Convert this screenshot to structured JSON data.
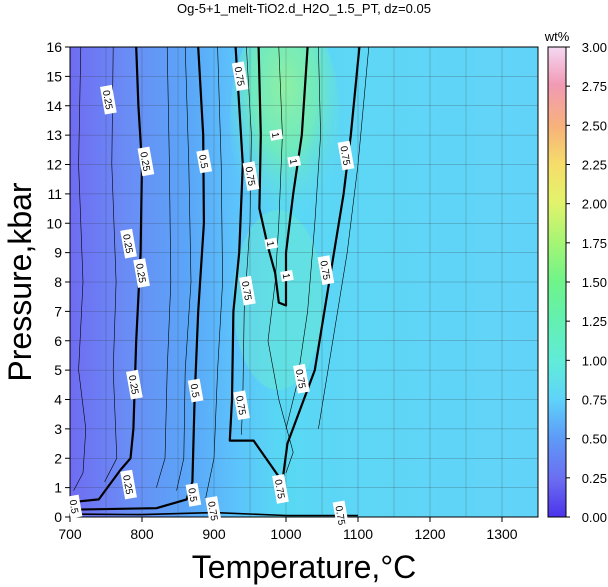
{
  "chart_data": {
    "type": "contour",
    "title": "Og-5+1_melt-TiO2.d_H2O_1.5_PT, dz=0.05",
    "xlabel": "Temperature,°C",
    "ylabel": "Pressure,kbar",
    "xlim": [
      700,
      1350
    ],
    "ylim": [
      0,
      16
    ],
    "x_ticks": [
      "700",
      "800",
      "900",
      "1000",
      "1100",
      "1200",
      "1300"
    ],
    "y_ticks": [
      "0",
      "1",
      "2",
      "3",
      "4",
      "5",
      "6",
      "7",
      "8",
      "9",
      "10",
      "11",
      "12",
      "13",
      "14",
      "15",
      "16"
    ],
    "grid": true,
    "colorbar": {
      "label": "wt%",
      "ticks": [
        "0.00",
        "0.25",
        "0.50",
        "0.75",
        "1.00",
        "1.25",
        "1.50",
        "1.75",
        "2.00",
        "2.25",
        "2.50",
        "2.75",
        "3.00"
      ],
      "range": [
        0,
        3
      ]
    },
    "contour_labels": [
      {
        "text": "0.25",
        "x": 752,
        "y": 14.2
      },
      {
        "text": "0.25",
        "x": 804,
        "y": 12.1
      },
      {
        "text": "0.25",
        "x": 798,
        "y": 8.3
      },
      {
        "text": "0.25",
        "x": 780,
        "y": 9.3
      },
      {
        "text": "0.25",
        "x": 788,
        "y": 4.5
      },
      {
        "text": "0.25",
        "x": 780,
        "y": 1.1
      },
      {
        "text": "0.5",
        "x": 705,
        "y": 0.35
      },
      {
        "text": "0.5",
        "x": 885,
        "y": 12.1
      },
      {
        "text": "0.5",
        "x": 873,
        "y": 4.3
      },
      {
        "text": "0.5",
        "x": 870,
        "y": 0.75
      },
      {
        "text": "0.75",
        "x": 935,
        "y": 15.0
      },
      {
        "text": "0.75",
        "x": 950,
        "y": 11.6
      },
      {
        "text": "0.75",
        "x": 945,
        "y": 7.7
      },
      {
        "text": "0.75",
        "x": 937,
        "y": 3.8
      },
      {
        "text": "0.75",
        "x": 1082,
        "y": 12.3
      },
      {
        "text": "0.75",
        "x": 1054,
        "y": 8.4
      },
      {
        "text": "0.75",
        "x": 1020,
        "y": 4.7
      },
      {
        "text": "0.75",
        "x": 991,
        "y": 0.95
      },
      {
        "text": "0.75",
        "x": 898,
        "y": 0.2
      },
      {
        "text": "0.75",
        "x": 1075,
        "y": 0.05
      },
      {
        "text": "1",
        "x": 985,
        "y": 13.0
      },
      {
        "text": "1",
        "x": 1010,
        "y": 12.1
      },
      {
        "text": "1",
        "x": 978,
        "y": 9.3
      },
      {
        "text": "1",
        "x": 1000,
        "y": 8.2
      }
    ]
  }
}
